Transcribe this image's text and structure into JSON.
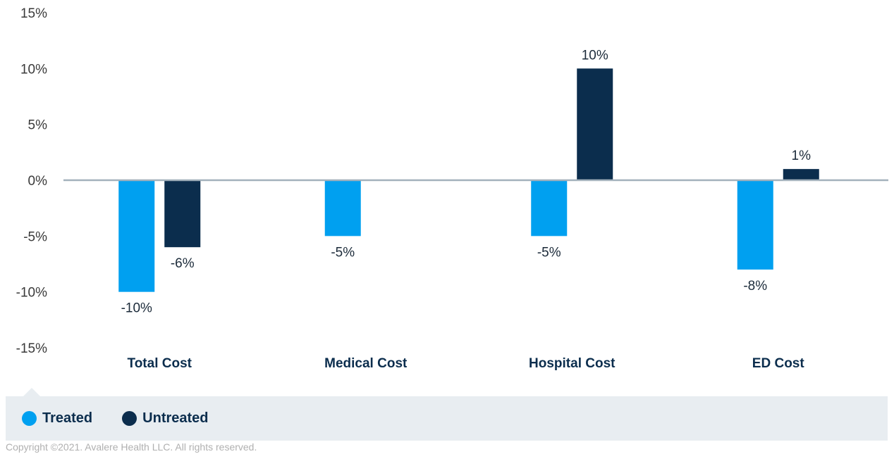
{
  "chart_data": {
    "type": "bar",
    "categories": [
      "Total Cost",
      "Medical Cost",
      "Hospital Cost",
      "ED Cost"
    ],
    "series": [
      {
        "name": "Treated",
        "color": "#00a0f0",
        "values": [
          -10,
          -5,
          -5,
          -8
        ],
        "labels": [
          "-10%",
          "-5%",
          "-5%",
          "-8%"
        ]
      },
      {
        "name": "Untreated",
        "color": "#0b2d4d",
        "values": [
          -6,
          null,
          10,
          1
        ],
        "labels": [
          "-6%",
          "",
          "10%",
          "1%"
        ]
      }
    ],
    "yticks": [
      "15%",
      "10%",
      "5%",
      "0%",
      "-5%",
      "-10%",
      "-15%"
    ],
    "ylim": [
      -15,
      15
    ],
    "grid": false,
    "legend_position": "bottom"
  },
  "legend": {
    "items": [
      {
        "label": "Treated",
        "color": "#00a0f0"
      },
      {
        "label": "Untreated",
        "color": "#0b2d4d"
      }
    ]
  },
  "footer": {
    "copyright": "Copyright ©2021. Avalere Health LLC. All rights reserved."
  }
}
